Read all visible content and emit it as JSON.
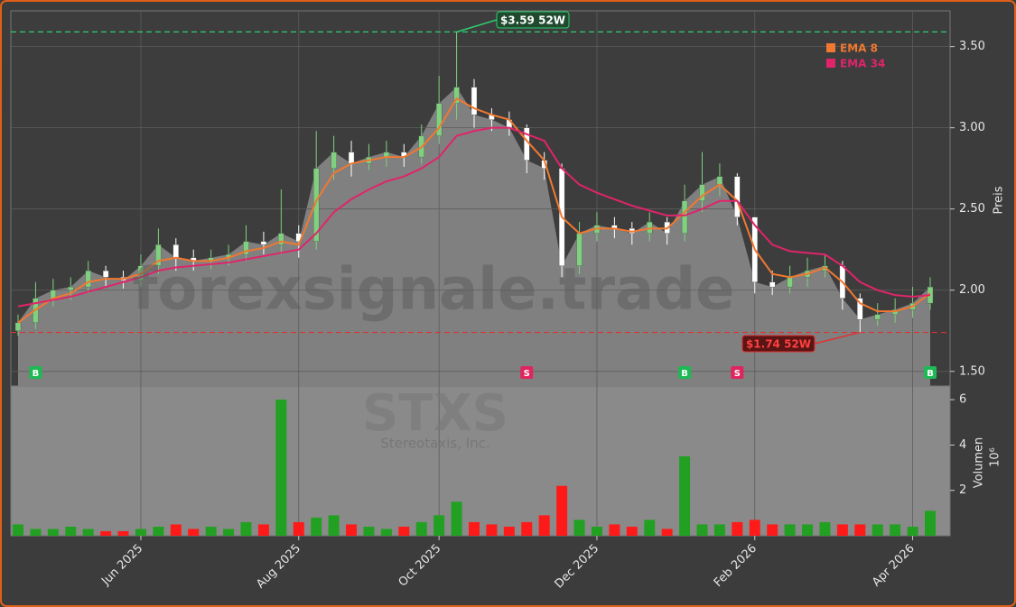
{
  "chart_data": {
    "type": "candlestick",
    "categories": [
      null,
      null,
      null,
      null,
      null,
      null,
      null,
      "Jun 2025",
      null,
      null,
      null,
      null,
      null,
      null,
      null,
      null,
      "Aug 2025",
      null,
      null,
      null,
      null,
      null,
      null,
      null,
      "Oct 2025",
      null,
      null,
      null,
      null,
      null,
      null,
      null,
      null,
      "Dec 2025",
      null,
      null,
      null,
      null,
      null,
      null,
      null,
      null,
      "Feb 2026",
      null,
      null,
      null,
      null,
      null,
      null,
      null,
      null,
      "Apr 2026",
      null
    ],
    "open": [
      1.75,
      1.8,
      1.95,
      2.0,
      2.02,
      2.12,
      2.08,
      2.06,
      2.15,
      2.28,
      2.2,
      2.18,
      2.2,
      2.22,
      2.3,
      2.28,
      2.35,
      2.3,
      2.75,
      2.85,
      2.78,
      2.82,
      2.85,
      2.82,
      2.95,
      3.15,
      3.25,
      3.08,
      3.05,
      3.0,
      2.8,
      2.75,
      2.15,
      2.35,
      2.4,
      2.38,
      2.35,
      2.42,
      2.35,
      2.55,
      2.65,
      2.7,
      2.45,
      2.05,
      2.02,
      2.08,
      2.12,
      2.15,
      1.95,
      1.82,
      1.85,
      1.88,
      1.92
    ],
    "high": [
      1.85,
      2.05,
      2.07,
      2.08,
      2.18,
      2.15,
      2.12,
      2.22,
      2.38,
      2.32,
      2.25,
      2.25,
      2.28,
      2.4,
      2.36,
      2.62,
      2.4,
      2.98,
      2.95,
      2.92,
      2.9,
      2.92,
      2.9,
      3.02,
      3.32,
      3.59,
      3.3,
      3.12,
      3.1,
      3.02,
      2.85,
      2.78,
      2.42,
      2.48,
      2.45,
      2.42,
      2.48,
      2.45,
      2.65,
      2.85,
      2.78,
      2.72,
      2.45,
      2.12,
      2.15,
      2.2,
      2.22,
      2.18,
      1.98,
      1.92,
      1.95,
      2.02,
      2.08
    ],
    "low": [
      1.72,
      1.76,
      1.9,
      1.94,
      1.98,
      2.02,
      2.01,
      2.02,
      2.1,
      2.12,
      2.12,
      2.13,
      2.15,
      2.18,
      2.22,
      2.22,
      2.2,
      2.25,
      2.68,
      2.7,
      2.74,
      2.76,
      2.76,
      2.78,
      2.9,
      3.05,
      3.0,
      2.98,
      2.95,
      2.72,
      2.68,
      2.08,
      2.1,
      2.3,
      2.32,
      2.28,
      2.3,
      2.28,
      2.3,
      2.48,
      2.58,
      2.4,
      1.98,
      1.97,
      1.98,
      2.02,
      2.08,
      1.88,
      1.74,
      1.78,
      1.8,
      1.83,
      1.88
    ],
    "close": [
      1.8,
      1.95,
      2.0,
      2.02,
      2.12,
      2.08,
      2.06,
      2.15,
      2.28,
      2.2,
      2.18,
      2.2,
      2.22,
      2.3,
      2.28,
      2.35,
      2.3,
      2.75,
      2.85,
      2.78,
      2.82,
      2.85,
      2.82,
      2.95,
      3.15,
      3.25,
      3.08,
      3.05,
      3.0,
      2.8,
      2.75,
      2.15,
      2.35,
      2.4,
      2.38,
      2.35,
      2.42,
      2.35,
      2.55,
      2.65,
      2.7,
      2.45,
      2.05,
      2.02,
      2.08,
      2.12,
      2.15,
      1.95,
      1.82,
      1.85,
      1.88,
      1.92,
      2.02
    ],
    "up_color": "#7fd07f",
    "down_color": "#ffffff",
    "area_color": "#808080",
    "overlays": [
      {
        "name": "EMA 8",
        "color": "#f07830",
        "values": [
          1.8,
          1.88,
          1.95,
          1.98,
          2.05,
          2.07,
          2.07,
          2.1,
          2.18,
          2.2,
          2.18,
          2.18,
          2.2,
          2.24,
          2.26,
          2.3,
          2.28,
          2.55,
          2.72,
          2.78,
          2.8,
          2.82,
          2.82,
          2.88,
          3.0,
          3.18,
          3.12,
          3.08,
          3.05,
          2.92,
          2.8,
          2.45,
          2.35,
          2.38,
          2.38,
          2.36,
          2.38,
          2.38,
          2.48,
          2.58,
          2.65,
          2.55,
          2.25,
          2.1,
          2.08,
          2.1,
          2.14,
          2.05,
          1.92,
          1.87,
          1.87,
          1.9,
          1.98
        ]
      },
      {
        "name": "EMA 34",
        "color": "#e0246a",
        "values": [
          1.9,
          1.92,
          1.94,
          1.96,
          1.99,
          2.02,
          2.05,
          2.08,
          2.12,
          2.14,
          2.15,
          2.16,
          2.17,
          2.19,
          2.21,
          2.23,
          2.25,
          2.35,
          2.48,
          2.56,
          2.62,
          2.67,
          2.7,
          2.75,
          2.82,
          2.95,
          2.98,
          3.0,
          3.0,
          2.96,
          2.92,
          2.75,
          2.65,
          2.6,
          2.56,
          2.52,
          2.49,
          2.46,
          2.46,
          2.5,
          2.55,
          2.55,
          2.4,
          2.28,
          2.24,
          2.23,
          2.22,
          2.15,
          2.05,
          2.0,
          1.97,
          1.96,
          1.97
        ]
      }
    ],
    "ylim": [
      1.41,
      3.72
    ],
    "yticks": [
      {
        "value": 1.5,
        "label": "1.50"
      },
      {
        "value": 2,
        "label": "2.00"
      },
      {
        "value": 2.5,
        "label": "2.50"
      },
      {
        "value": 3,
        "label": "3.00"
      },
      {
        "value": 3.5,
        "label": "3.50"
      }
    ],
    "ylabel": "Preis",
    "high_mark": {
      "value": 3.59,
      "label": "$3.59 52W",
      "color": "#2ecc71"
    },
    "low_mark": {
      "value": 1.74,
      "label": "$1.74 52W",
      "color": "#e03030"
    },
    "signals": [
      null,
      "B",
      null,
      null,
      null,
      null,
      null,
      null,
      null,
      null,
      null,
      null,
      null,
      null,
      null,
      null,
      null,
      null,
      null,
      null,
      null,
      null,
      null,
      null,
      null,
      null,
      null,
      null,
      null,
      "S",
      null,
      null,
      null,
      null,
      null,
      null,
      null,
      null,
      "B",
      null,
      null,
      "S",
      null,
      null,
      null,
      null,
      null,
      null,
      null,
      null,
      null,
      null,
      "B"
    ],
    "buy_color": "#1db954",
    "sell_color": "#e0245e",
    "watermark": "forexsignale.trade",
    "symbol": "STXS",
    "company": "Stereotaxis, Inc.",
    "volume": {
      "values": [
        0.5,
        0.3,
        0.3,
        0.4,
        0.3,
        0.2,
        0.2,
        0.3,
        0.4,
        0.5,
        0.3,
        0.4,
        0.3,
        0.6,
        0.5,
        6.0,
        0.6,
        0.8,
        0.9,
        0.5,
        0.4,
        0.3,
        0.4,
        0.6,
        0.9,
        1.5,
        0.6,
        0.5,
        0.4,
        0.6,
        0.9,
        2.2,
        0.7,
        0.4,
        0.5,
        0.4,
        0.7,
        0.3,
        3.5,
        0.5,
        0.5,
        0.6,
        0.7,
        0.5,
        0.5,
        0.5,
        0.6,
        0.5,
        0.5,
        0.5,
        0.5,
        0.4,
        1.1
      ],
      "ylim": [
        0,
        6.6
      ],
      "yticks": [
        2,
        4,
        6
      ],
      "ylabel": "Volumen",
      "offset_label": "10⁶",
      "up_color": "#22a022",
      "down_color": "#ff1a1a"
    },
    "grid": true
  }
}
